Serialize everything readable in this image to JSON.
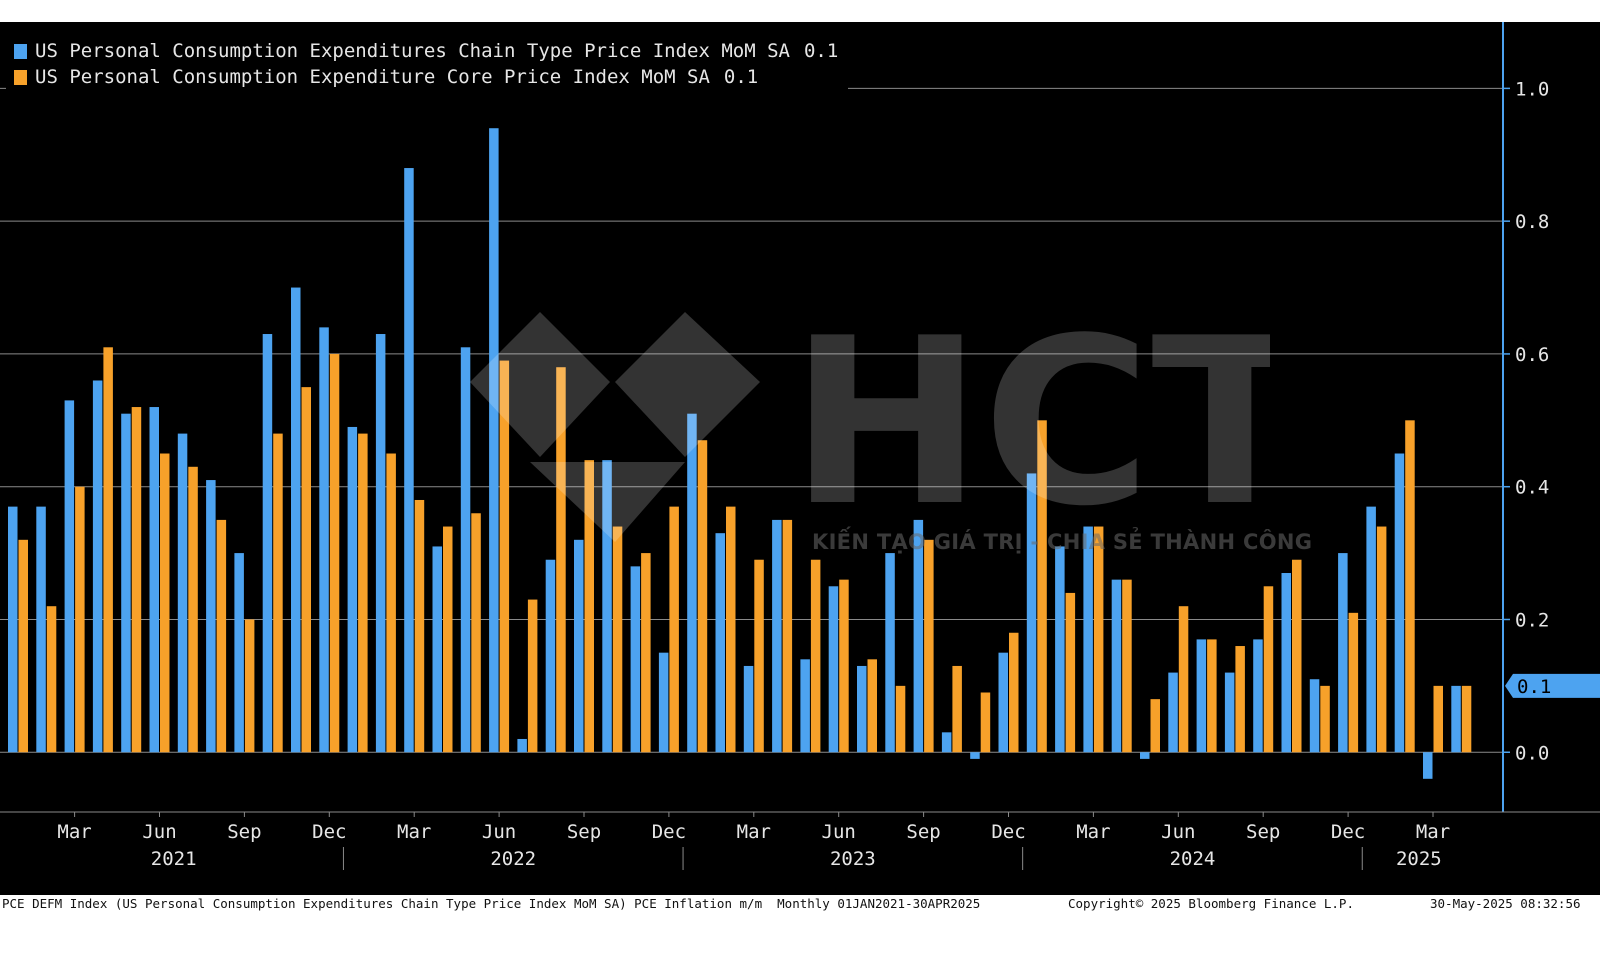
{
  "legend": [
    {
      "label": "US Personal Consumption Expenditures Chain Type Price Index MoM SA",
      "value": "0.1",
      "color": "#4da3f0"
    },
    {
      "label": "US Personal Consumption Expenditure Core Price Index MoM SA",
      "value": "0.1",
      "color": "#f7a12a"
    }
  ],
  "watermark": {
    "logo_text": "HCT",
    "tagline": "KIẾN TẠO GIÁ TRỊ - CHIA SẺ THÀNH CÔNG"
  },
  "footer": {
    "description": "PCE DEFM Index (US Personal Consumption Expenditures Chain Type Price Index MoM SA) PCE Inflation m/m  Monthly 01JAN2021-30APR2025",
    "copyright": "Copyright© 2025 Bloomberg Finance L.P.",
    "timestamp": "30-May-2025 08:32:56"
  },
  "chart_data": {
    "type": "bar",
    "categories": [
      "Jan 2021",
      "Feb 2021",
      "Mar 2021",
      "Apr 2021",
      "May 2021",
      "Jun 2021",
      "Jul 2021",
      "Aug 2021",
      "Sep 2021",
      "Oct 2021",
      "Nov 2021",
      "Dec 2021",
      "Jan 2022",
      "Feb 2022",
      "Mar 2022",
      "Apr 2022",
      "May 2022",
      "Jun 2022",
      "Jul 2022",
      "Aug 2022",
      "Sep 2022",
      "Oct 2022",
      "Nov 2022",
      "Dec 2022",
      "Jan 2023",
      "Feb 2023",
      "Mar 2023",
      "Apr 2023",
      "May 2023",
      "Jun 2023",
      "Jul 2023",
      "Aug 2023",
      "Sep 2023",
      "Oct 2023",
      "Nov 2023",
      "Dec 2023",
      "Jan 2024",
      "Feb 2024",
      "Mar 2024",
      "Apr 2024",
      "May 2024",
      "Jun 2024",
      "Jul 2024",
      "Aug 2024",
      "Sep 2024",
      "Oct 2024",
      "Nov 2024",
      "Dec 2024",
      "Jan 2025",
      "Feb 2025",
      "Mar 2025",
      "Apr 2025"
    ],
    "series": [
      {
        "name": "US Personal Consumption Expenditures Chain Type Price Index MoM SA",
        "color": "#4da3f0",
        "values": [
          0.37,
          0.37,
          0.53,
          0.56,
          0.51,
          0.52,
          0.48,
          0.41,
          0.3,
          0.63,
          0.7,
          0.64,
          0.49,
          0.63,
          0.88,
          0.31,
          0.61,
          0.94,
          0.02,
          0.29,
          0.32,
          0.44,
          0.28,
          0.15,
          0.51,
          0.33,
          0.13,
          0.35,
          0.14,
          0.25,
          0.13,
          0.3,
          0.35,
          0.03,
          -0.01,
          0.15,
          0.42,
          0.31,
          0.34,
          0.26,
          -0.01,
          0.12,
          0.17,
          0.12,
          0.17,
          0.27,
          0.11,
          0.3,
          0.37,
          0.45,
          -0.04,
          0.1
        ]
      },
      {
        "name": "US Personal Consumption Expenditure Core Price Index MoM SA",
        "color": "#f7a12a",
        "values": [
          0.32,
          0.22,
          0.4,
          0.61,
          0.52,
          0.45,
          0.43,
          0.35,
          0.2,
          0.48,
          0.55,
          0.6,
          0.48,
          0.45,
          0.38,
          0.34,
          0.36,
          0.59,
          0.23,
          0.58,
          0.44,
          0.34,
          0.3,
          0.37,
          0.47,
          0.37,
          0.29,
          0.35,
          0.29,
          0.26,
          0.14,
          0.1,
          0.32,
          0.13,
          0.09,
          0.18,
          0.5,
          0.24,
          0.34,
          0.26,
          0.08,
          0.22,
          0.17,
          0.16,
          0.25,
          0.29,
          0.1,
          0.21,
          0.34,
          0.5,
          0.1,
          0.1
        ]
      }
    ],
    "ylim": [
      -0.09,
      1.1
    ],
    "yticks": [
      "0.0",
      "0.2",
      "0.4",
      "0.6",
      "0.8",
      "1.0"
    ],
    "last_value_label": "0.1",
    "xaxis": {
      "months": [
        "Mar",
        "Jun",
        "Sep",
        "Dec",
        "Mar",
        "Jun",
        "Sep",
        "Dec",
        "Mar",
        "Jun",
        "Sep",
        "Dec",
        "Mar",
        "Jun",
        "Sep",
        "Dec",
        "Mar"
      ],
      "years": [
        "2021",
        "2022",
        "2023",
        "2024",
        "2025"
      ]
    },
    "grid": true,
    "legend_position": "top-left",
    "background": "#000000"
  }
}
